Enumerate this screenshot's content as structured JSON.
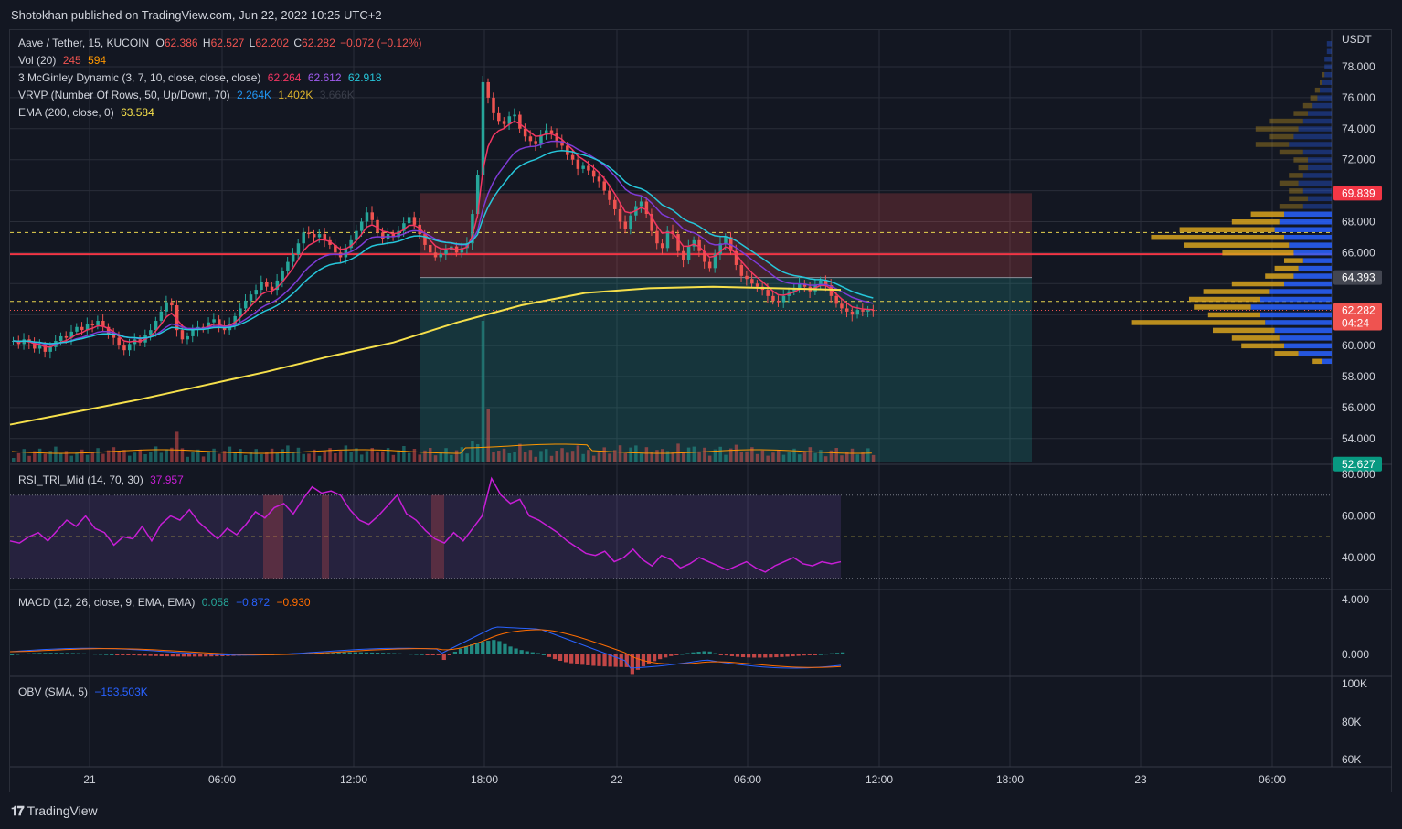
{
  "header": {
    "publish_line": "Shotokhan published on TradingView.com, Jun 22, 2022 10:25 UTC+2"
  },
  "legend": {
    "symbol": "Aave / Tether, 15, KUCOIN",
    "open_label": "O",
    "open": "62.386",
    "high_label": "H",
    "high": "62.527",
    "low_label": "L",
    "low": "62.202",
    "close_label": "C",
    "close": "62.282",
    "change": "−0.072 (−0.12%)",
    "vol_label": "Vol (20)",
    "vol_value": "245",
    "vol_ma": "594",
    "mcginley_label": "3 McGinley Dynamic (3, 7, 10, close, close, close)",
    "mcginley_1": "62.264",
    "mcginley_2": "62.612",
    "mcginley_3": "62.918",
    "vrvp_label": "VRVP (Number Of Rows, 50, Up/Down, 70)",
    "vrvp_up": "2.264K",
    "vrvp_down": "1.402K",
    "vrvp_total": "3.666K",
    "ema_label": "EMA (200, close, 0)",
    "ema_value": "63.584",
    "rsi_label": "RSI_TRI_Mid (14, 70, 30)",
    "rsi_value": "37.957",
    "macd_label": "MACD (12, 26, close, 9, EMA, EMA)",
    "macd_hist": "0.058",
    "macd_line": "−0.872",
    "macd_signal": "−0.930",
    "obv_label": "OBV (SMA, 5)",
    "obv_value": "−153.503K"
  },
  "colors": {
    "bg": "#131722",
    "up": "#26a69a",
    "down": "#ef5350",
    "grid": "#2a2e39",
    "ema200": "#f6e04b",
    "mg1": "#f23662",
    "mg2": "#7e3bd6",
    "mg3": "#26c6da",
    "rsi": "#c71ed6",
    "macd": "#2962ff",
    "signal": "#ff6d00",
    "vp_up": "#2962ff",
    "vp_down": "#d8a31d"
  },
  "chart_data": {
    "type": "candlestick",
    "title": "Aave / Tether, 15, KUCOIN",
    "currency_label": "USDT",
    "ylim": [
      51.5,
      80.5
    ],
    "price_ticks": [
      "78.000",
      "76.000",
      "74.000",
      "72.000",
      "68.000",
      "66.000",
      "60.000",
      "58.000",
      "56.000",
      "54.000"
    ],
    "price_labels": {
      "stop_level": "69.839",
      "entry_level": "64.393",
      "last_price": "62.282",
      "countdown": "04:24",
      "target_level": "52.627"
    },
    "time_ticks": [
      "21",
      "06:00",
      "12:00",
      "18:00",
      "22",
      "06:00",
      "12:00",
      "18:00",
      "23",
      "06:00"
    ],
    "levels": {
      "red_line": 65.9,
      "yellow_dashed_upper": 67.3,
      "yellow_dashed_lower": 62.85,
      "last_dotted": 62.28
    },
    "position": {
      "stop": 69.839,
      "entry": 64.393,
      "target": 52.627
    },
    "close_path": [
      60.3,
      60.1,
      60.4,
      60.2,
      59.8,
      60.0,
      59.6,
      59.9,
      60.3,
      60.6,
      60.5,
      60.9,
      61.2,
      61.0,
      61.4,
      61.3,
      61.6,
      61.2,
      60.8,
      60.5,
      60.0,
      59.7,
      60.1,
      60.4,
      60.2,
      60.7,
      61.0,
      61.6,
      62.2,
      62.8,
      62.6,
      61.0,
      60.4,
      60.6,
      61.0,
      61.2,
      61.1,
      61.5,
      61.7,
      61.3,
      61.0,
      61.4,
      61.9,
      62.4,
      62.9,
      63.3,
      63.6,
      64.1,
      63.8,
      63.6,
      64.2,
      64.8,
      65.4,
      65.9,
      66.6,
      67.3,
      67.2,
      67.0,
      67.2,
      66.8,
      66.5,
      66.0,
      65.7,
      66.3,
      66.8,
      67.4,
      68.0,
      68.6,
      68.1,
      67.3,
      66.9,
      67.2,
      67.0,
      67.4,
      67.9,
      68.3,
      67.8,
      67.2,
      66.5,
      66.0,
      65.7,
      65.9,
      66.2,
      66.4,
      66.0,
      66.3,
      66.6,
      68.5,
      71.0,
      77.0,
      76.0,
      75.0,
      74.5,
      74.3,
      74.8,
      74.9,
      74.0,
      73.5,
      73.2,
      73.0,
      73.6,
      73.9,
      73.7,
      73.2,
      72.9,
      72.3,
      72.0,
      71.4,
      71.6,
      71.3,
      70.9,
      70.6,
      70.0,
      69.4,
      68.8,
      68.0,
      67.5,
      68.4,
      69.0,
      69.3,
      68.5,
      67.4,
      66.6,
      66.3,
      67.4,
      67.2,
      66.1,
      65.5,
      66.4,
      66.8,
      66.1,
      65.4,
      65.0,
      65.9,
      66.6,
      67.0,
      66.1,
      65.2,
      64.5,
      64.3,
      64.0,
      63.8,
      63.6,
      63.2,
      62.9,
      62.8,
      63.2,
      63.5,
      63.7,
      64.0,
      63.8,
      63.5,
      63.9,
      64.2,
      63.9,
      63.2,
      62.7,
      62.4,
      62.2,
      62.0,
      62.3,
      62.2,
      62.3,
      62.28
    ],
    "ema200": [
      54.9,
      55.7,
      56.5,
      57.4,
      58.3,
      59.3,
      60.2,
      61.5,
      62.6,
      63.4,
      63.7,
      63.8,
      63.7,
      63.6
    ],
    "volume_ma": 590,
    "rsi": {
      "ylim": [
        25,
        82
      ],
      "ticks": [
        "80.000",
        "60.000",
        "40.000"
      ],
      "band": [
        30,
        70
      ],
      "mid": 50,
      "values": [
        48,
        47,
        50,
        52,
        48,
        53,
        58,
        55,
        60,
        54,
        52,
        46,
        50,
        49,
        55,
        48,
        56,
        60,
        58,
        63,
        57,
        53,
        49,
        54,
        51,
        56,
        62,
        59,
        64,
        66,
        61,
        68,
        74,
        71,
        72,
        70,
        63,
        58,
        56,
        60,
        65,
        70,
        61,
        58,
        53,
        49,
        47,
        52,
        48,
        54,
        60,
        78,
        70,
        66,
        68,
        60,
        58,
        55,
        52,
        48,
        45,
        42,
        41,
        43,
        38,
        40,
        44,
        39,
        36,
        41,
        39,
        35,
        37,
        40,
        38,
        36,
        34,
        36,
        38,
        35,
        33,
        36,
        38,
        40,
        37,
        36,
        38,
        37,
        38
      ]
    },
    "macd": {
      "ticks": [
        "4.000",
        "0.000"
      ],
      "ylim": [
        -1.6,
        4.6
      ]
    },
    "obv": {
      "ticks": [
        "100K",
        "80K",
        "60K"
      ]
    },
    "volume_profile_values_per_row": [
      {
        "price": 79.5,
        "up": 2,
        "down": 0
      },
      {
        "price": 79.0,
        "up": 2,
        "down": 0
      },
      {
        "price": 78.5,
        "up": 3,
        "down": 0
      },
      {
        "price": 78.0,
        "up": 3,
        "down": 0
      },
      {
        "price": 77.5,
        "up": 3,
        "down": 1
      },
      {
        "price": 77.0,
        "up": 4,
        "down": 1
      },
      {
        "price": 76.5,
        "up": 5,
        "down": 2
      },
      {
        "price": 76.0,
        "up": 6,
        "down": 3
      },
      {
        "price": 75.5,
        "up": 8,
        "down": 4
      },
      {
        "price": 75.0,
        "up": 10,
        "down": 6
      },
      {
        "price": 74.5,
        "up": 12,
        "down": 14
      },
      {
        "price": 74.0,
        "up": 14,
        "down": 18
      },
      {
        "price": 73.5,
        "up": 16,
        "down": 10
      },
      {
        "price": 73.0,
        "up": 18,
        "down": 14
      },
      {
        "price": 72.5,
        "up": 12,
        "down": 10
      },
      {
        "price": 72.0,
        "up": 10,
        "down": 6
      },
      {
        "price": 71.5,
        "up": 10,
        "down": 4
      },
      {
        "price": 71.0,
        "up": 12,
        "down": 6
      },
      {
        "price": 70.5,
        "up": 14,
        "down": 8
      },
      {
        "price": 70.0,
        "up": 12,
        "down": 6
      },
      {
        "price": 69.5,
        "up": 10,
        "down": 8
      },
      {
        "price": 69.0,
        "up": 12,
        "down": 10
      },
      {
        "price": 68.5,
        "up": 20,
        "down": 14
      },
      {
        "price": 68.0,
        "up": 22,
        "down": 20
      },
      {
        "price": 67.5,
        "up": 24,
        "down": 40
      },
      {
        "price": 67.0,
        "up": 20,
        "down": 56
      },
      {
        "price": 66.5,
        "up": 18,
        "down": 44
      },
      {
        "price": 66.0,
        "up": 16,
        "down": 30
      },
      {
        "price": 65.5,
        "up": 12,
        "down": 8
      },
      {
        "price": 65.0,
        "up": 14,
        "down": 10
      },
      {
        "price": 64.5,
        "up": 16,
        "down": 12
      },
      {
        "price": 64.0,
        "up": 20,
        "down": 22
      },
      {
        "price": 63.5,
        "up": 26,
        "down": 28
      },
      {
        "price": 63.0,
        "up": 30,
        "down": 30
      },
      {
        "price": 62.5,
        "up": 34,
        "down": 24
      },
      {
        "price": 62.0,
        "up": 30,
        "down": 22
      },
      {
        "price": 61.5,
        "up": 28,
        "down": 56
      },
      {
        "price": 61.0,
        "up": 24,
        "down": 26
      },
      {
        "price": 60.5,
        "up": 22,
        "down": 20
      },
      {
        "price": 60.0,
        "up": 20,
        "down": 18
      },
      {
        "price": 59.5,
        "up": 14,
        "down": 10
      },
      {
        "price": 59.0,
        "up": 4,
        "down": 4
      }
    ]
  },
  "footer": {
    "brand": "TradingView"
  }
}
